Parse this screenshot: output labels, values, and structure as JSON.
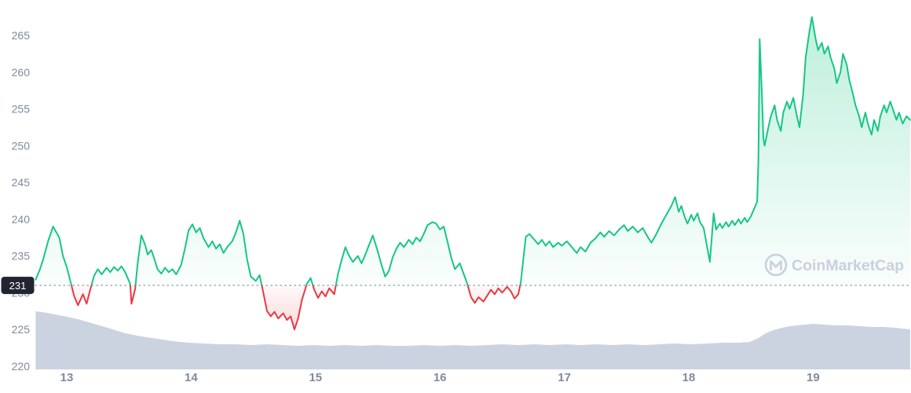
{
  "watermark": {
    "text": "CoinMarketCap"
  },
  "chart_data": {
    "type": "line",
    "xlabel": "",
    "ylabel": "",
    "x_ticks": [
      "13",
      "14",
      "15",
      "16",
      "17",
      "18",
      "19"
    ],
    "x_tick_values": [
      13,
      14,
      15,
      16,
      17,
      18,
      19
    ],
    "y_ticks": [
      265,
      260,
      255,
      250,
      245,
      240,
      235,
      230,
      225,
      220
    ],
    "xlim": [
      12.75,
      19.78
    ],
    "ylim": [
      219,
      268
    ],
    "grid": false,
    "legend": false,
    "baseline": {
      "value": 231,
      "label": "231"
    },
    "colors": {
      "up": "#16c784",
      "down": "#ea3943",
      "volume": "#ccd3e0",
      "dotted": "#9aa4b8",
      "axis_text": "#808a9d",
      "badge_bg": "#222531",
      "badge_text": "#ffffff",
      "watermark": "#c9d0de"
    },
    "series": [
      {
        "name": "price",
        "unit": "USD",
        "points": [
          [
            12.75,
            231.8
          ],
          [
            12.78,
            233.0
          ],
          [
            12.81,
            234.5
          ],
          [
            12.85,
            237.0
          ],
          [
            12.89,
            239.0
          ],
          [
            12.94,
            237.5
          ],
          [
            12.97,
            235.0
          ],
          [
            13.0,
            233.5
          ],
          [
            13.03,
            231.5
          ],
          [
            13.06,
            229.5
          ],
          [
            13.09,
            228.3
          ],
          [
            13.13,
            229.8
          ],
          [
            13.16,
            228.5
          ],
          [
            13.19,
            230.5
          ],
          [
            13.22,
            232.3
          ],
          [
            13.25,
            233.2
          ],
          [
            13.28,
            232.5
          ],
          [
            13.32,
            233.4
          ],
          [
            13.35,
            232.8
          ],
          [
            13.38,
            233.5
          ],
          [
            13.41,
            233.0
          ],
          [
            13.44,
            233.6
          ],
          [
            13.47,
            232.8
          ],
          [
            13.51,
            231.2
          ],
          [
            13.52,
            228.5
          ],
          [
            13.55,
            230.5
          ],
          [
            13.57,
            234.0
          ],
          [
            13.6,
            237.8
          ],
          [
            13.63,
            236.5
          ],
          [
            13.65,
            235.2
          ],
          [
            13.68,
            235.8
          ],
          [
            13.7,
            234.8
          ],
          [
            13.73,
            233.2
          ],
          [
            13.76,
            232.6
          ],
          [
            13.79,
            233.4
          ],
          [
            13.82,
            232.8
          ],
          [
            13.85,
            233.2
          ],
          [
            13.88,
            232.5
          ],
          [
            13.92,
            233.8
          ],
          [
            13.95,
            236.0
          ],
          [
            13.98,
            238.5
          ],
          [
            14.01,
            239.3
          ],
          [
            14.04,
            238.2
          ],
          [
            14.07,
            238.8
          ],
          [
            14.1,
            237.4
          ],
          [
            14.14,
            236.2
          ],
          [
            14.17,
            237.0
          ],
          [
            14.2,
            236.0
          ],
          [
            14.23,
            236.6
          ],
          [
            14.26,
            235.4
          ],
          [
            14.29,
            236.2
          ],
          [
            14.33,
            237.0
          ],
          [
            14.36,
            238.2
          ],
          [
            14.39,
            239.8
          ],
          [
            14.42,
            238.0
          ],
          [
            14.45,
            234.5
          ],
          [
            14.48,
            232.2
          ],
          [
            14.52,
            231.6
          ],
          [
            14.55,
            232.4
          ],
          [
            14.58,
            230.0
          ],
          [
            14.61,
            227.5
          ],
          [
            14.64,
            226.8
          ],
          [
            14.67,
            227.4
          ],
          [
            14.7,
            226.5
          ],
          [
            14.74,
            227.2
          ],
          [
            14.77,
            226.3
          ],
          [
            14.8,
            226.8
          ],
          [
            14.83,
            225.0
          ],
          [
            14.86,
            226.5
          ],
          [
            14.89,
            229.0
          ],
          [
            14.93,
            231.2
          ],
          [
            14.96,
            232.0
          ],
          [
            14.99,
            230.4
          ],
          [
            15.02,
            229.3
          ],
          [
            15.05,
            230.2
          ],
          [
            15.08,
            229.5
          ],
          [
            15.11,
            230.6
          ],
          [
            15.15,
            229.8
          ],
          [
            15.18,
            232.5
          ],
          [
            15.21,
            234.5
          ],
          [
            15.24,
            236.2
          ],
          [
            15.27,
            235.0
          ],
          [
            15.3,
            234.2
          ],
          [
            15.34,
            235.0
          ],
          [
            15.37,
            234.0
          ],
          [
            15.4,
            235.2
          ],
          [
            15.43,
            236.5
          ],
          [
            15.46,
            237.8
          ],
          [
            15.49,
            236.2
          ],
          [
            15.53,
            233.8
          ],
          [
            15.56,
            232.2
          ],
          [
            15.59,
            233.0
          ],
          [
            15.62,
            234.8
          ],
          [
            15.65,
            236.0
          ],
          [
            15.68,
            236.8
          ],
          [
            15.71,
            236.2
          ],
          [
            15.75,
            237.2
          ],
          [
            15.78,
            236.6
          ],
          [
            15.81,
            237.5
          ],
          [
            15.84,
            237.0
          ],
          [
            15.87,
            238.0
          ],
          [
            15.9,
            239.2
          ],
          [
            15.94,
            239.6
          ],
          [
            15.97,
            239.4
          ],
          [
            16.0,
            238.6
          ],
          [
            16.03,
            239.0
          ],
          [
            16.06,
            237.0
          ],
          [
            16.09,
            234.8
          ],
          [
            16.12,
            233.2
          ],
          [
            16.16,
            234.0
          ],
          [
            16.19,
            232.6
          ],
          [
            16.22,
            231.2
          ],
          [
            16.25,
            229.4
          ],
          [
            16.28,
            228.6
          ],
          [
            16.31,
            229.4
          ],
          [
            16.35,
            228.8
          ],
          [
            16.38,
            229.6
          ],
          [
            16.41,
            230.4
          ],
          [
            16.44,
            229.8
          ],
          [
            16.47,
            230.6
          ],
          [
            16.5,
            230.0
          ],
          [
            16.54,
            230.8
          ],
          [
            16.57,
            230.2
          ],
          [
            16.6,
            229.2
          ],
          [
            16.63,
            229.8
          ],
          [
            16.65,
            231.5
          ],
          [
            16.67,
            234.5
          ],
          [
            16.69,
            237.6
          ],
          [
            16.72,
            238.0
          ],
          [
            16.76,
            237.2
          ],
          [
            16.79,
            236.6
          ],
          [
            16.82,
            237.2
          ],
          [
            16.85,
            236.4
          ],
          [
            16.88,
            237.0
          ],
          [
            16.91,
            236.2
          ],
          [
            16.95,
            236.8
          ],
          [
            16.98,
            236.4
          ],
          [
            17.02,
            237.0
          ],
          [
            17.06,
            236.2
          ],
          [
            17.1,
            235.4
          ],
          [
            17.13,
            236.2
          ],
          [
            17.17,
            235.6
          ],
          [
            17.21,
            236.8
          ],
          [
            17.25,
            237.4
          ],
          [
            17.29,
            238.2
          ],
          [
            17.32,
            237.6
          ],
          [
            17.36,
            238.4
          ],
          [
            17.4,
            237.8
          ],
          [
            17.44,
            238.6
          ],
          [
            17.48,
            239.2
          ],
          [
            17.51,
            238.4
          ],
          [
            17.55,
            239.0
          ],
          [
            17.59,
            238.2
          ],
          [
            17.63,
            238.8
          ],
          [
            17.67,
            237.6
          ],
          [
            17.7,
            236.8
          ],
          [
            17.74,
            238.0
          ],
          [
            17.78,
            239.4
          ],
          [
            17.82,
            240.6
          ],
          [
            17.86,
            241.8
          ],
          [
            17.89,
            243.0
          ],
          [
            17.92,
            241.0
          ],
          [
            17.94,
            241.8
          ],
          [
            17.97,
            240.2
          ],
          [
            17.99,
            239.4
          ],
          [
            18.02,
            240.6
          ],
          [
            18.04,
            239.8
          ],
          [
            18.07,
            240.8
          ],
          [
            18.09,
            239.6
          ],
          [
            18.12,
            238.8
          ],
          [
            18.15,
            236.0
          ],
          [
            18.17,
            234.2
          ],
          [
            18.2,
            240.8
          ],
          [
            18.22,
            238.6
          ],
          [
            18.25,
            239.4
          ],
          [
            18.27,
            238.8
          ],
          [
            18.3,
            239.6
          ],
          [
            18.32,
            239.0
          ],
          [
            18.35,
            239.8
          ],
          [
            18.37,
            239.2
          ],
          [
            18.4,
            240.0
          ],
          [
            18.42,
            239.4
          ],
          [
            18.45,
            240.2
          ],
          [
            18.47,
            239.6
          ],
          [
            18.5,
            240.4
          ],
          [
            18.52,
            241.2
          ],
          [
            18.55,
            242.4
          ],
          [
            18.56,
            248.0
          ],
          [
            18.57,
            264.5
          ],
          [
            18.59,
            256.0
          ],
          [
            18.6,
            251.0
          ],
          [
            18.61,
            250.0
          ],
          [
            18.64,
            252.5
          ],
          [
            18.66,
            254.0
          ],
          [
            18.69,
            255.5
          ],
          [
            18.71,
            253.5
          ],
          [
            18.74,
            252.0
          ],
          [
            18.76,
            254.5
          ],
          [
            18.79,
            256.0
          ],
          [
            18.81,
            255.0
          ],
          [
            18.84,
            256.5
          ],
          [
            18.87,
            254.0
          ],
          [
            18.89,
            252.5
          ],
          [
            18.92,
            257.0
          ],
          [
            18.94,
            262.0
          ],
          [
            18.97,
            265.5
          ],
          [
            18.99,
            267.5
          ],
          [
            19.02,
            264.5
          ],
          [
            19.04,
            263.0
          ],
          [
            19.07,
            264.0
          ],
          [
            19.09,
            262.5
          ],
          [
            19.12,
            263.5
          ],
          [
            19.14,
            262.0
          ],
          [
            19.17,
            260.5
          ],
          [
            19.19,
            258.5
          ],
          [
            19.22,
            260.0
          ],
          [
            19.24,
            262.5
          ],
          [
            19.27,
            261.0
          ],
          [
            19.29,
            259.0
          ],
          [
            19.32,
            257.0
          ],
          [
            19.34,
            255.5
          ],
          [
            19.37,
            254.0
          ],
          [
            19.39,
            252.5
          ],
          [
            19.42,
            254.5
          ],
          [
            19.44,
            253.0
          ],
          [
            19.47,
            251.5
          ],
          [
            19.49,
            253.5
          ],
          [
            19.52,
            252.0
          ],
          [
            19.54,
            254.0
          ],
          [
            19.57,
            255.5
          ],
          [
            19.59,
            254.5
          ],
          [
            19.62,
            256.0
          ],
          [
            19.64,
            255.0
          ],
          [
            19.67,
            253.5
          ],
          [
            19.69,
            254.5
          ],
          [
            19.72,
            253.0
          ],
          [
            19.75,
            254.0
          ],
          [
            19.78,
            253.5
          ]
        ]
      }
    ],
    "volume_profile": {
      "unit": "relative",
      "points": [
        [
          12.75,
          74
        ],
        [
          12.84,
          72
        ],
        [
          12.97,
          68
        ],
        [
          13.09,
          64
        ],
        [
          13.22,
          58
        ],
        [
          13.35,
          52
        ],
        [
          13.47,
          46
        ],
        [
          13.6,
          42
        ],
        [
          13.73,
          39
        ],
        [
          13.85,
          36
        ],
        [
          13.98,
          34
        ],
        [
          14.1,
          33
        ],
        [
          14.23,
          32
        ],
        [
          14.36,
          32
        ],
        [
          14.48,
          31
        ],
        [
          14.61,
          32
        ],
        [
          14.74,
          31
        ],
        [
          14.86,
          30
        ],
        [
          14.99,
          31
        ],
        [
          15.11,
          30
        ],
        [
          15.24,
          31
        ],
        [
          15.37,
          30
        ],
        [
          15.49,
          31
        ],
        [
          15.62,
          30
        ],
        [
          15.75,
          30
        ],
        [
          15.87,
          31
        ],
        [
          16.0,
          30
        ],
        [
          16.12,
          31
        ],
        [
          16.25,
          30
        ],
        [
          16.38,
          31
        ],
        [
          16.5,
          32
        ],
        [
          16.63,
          31
        ],
        [
          16.76,
          32
        ],
        [
          16.88,
          31
        ],
        [
          17.01,
          32
        ],
        [
          17.13,
          31
        ],
        [
          17.26,
          32
        ],
        [
          17.39,
          31
        ],
        [
          17.51,
          32
        ],
        [
          17.64,
          31
        ],
        [
          17.76,
          32
        ],
        [
          17.89,
          33
        ],
        [
          18.02,
          32
        ],
        [
          18.15,
          33
        ],
        [
          18.27,
          34
        ],
        [
          18.4,
          34
        ],
        [
          18.49,
          35
        ],
        [
          18.56,
          40
        ],
        [
          18.62,
          46
        ],
        [
          18.68,
          50
        ],
        [
          18.75,
          53
        ],
        [
          18.81,
          55
        ],
        [
          18.87,
          56
        ],
        [
          18.94,
          57
        ],
        [
          19.0,
          58
        ],
        [
          19.09,
          57
        ],
        [
          19.19,
          56
        ],
        [
          19.28,
          56
        ],
        [
          19.38,
          55
        ],
        [
          19.47,
          54
        ],
        [
          19.57,
          54
        ],
        [
          19.66,
          53
        ],
        [
          19.72,
          52
        ],
        [
          19.78,
          51
        ]
      ]
    }
  }
}
